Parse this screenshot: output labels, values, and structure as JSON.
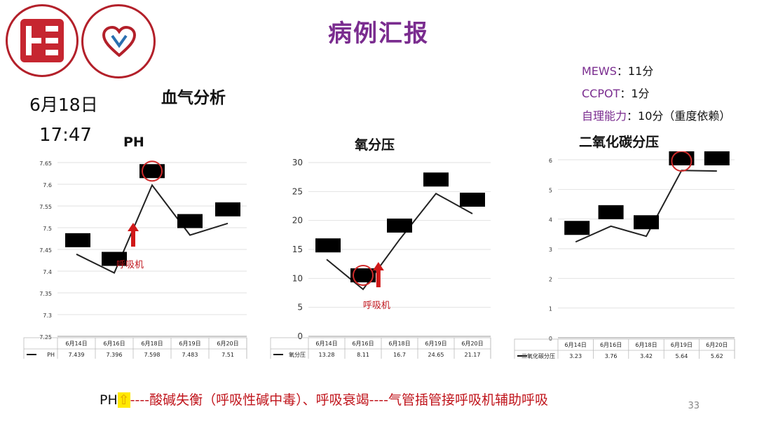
{
  "title": "病例汇报",
  "date": "6月18日",
  "time": "17:47",
  "section_title": "血气分析",
  "scores": [
    {
      "key": "MEWS",
      "value": "：11分"
    },
    {
      "key": "CCPOT",
      "value": "：1分"
    },
    {
      "key": "自理能力",
      "value": "：10分（重度依赖）"
    }
  ],
  "ventilator_label": "呼吸机",
  "footer": {
    "ph": "PH",
    "arrow": "⇧",
    "rest": "----酸碱失衡（呼吸性碱中毒）、呼吸衰竭----气管插管接呼吸机辅助呼吸"
  },
  "page_number": "33",
  "colors": {
    "title": "#7a2c8f",
    "alert": "#c0151c",
    "line": "#222222"
  },
  "chart_data": [
    {
      "type": "line",
      "title": "PH",
      "series": [
        {
          "name": "PH",
          "values": [
            7.439,
            7.396,
            7.598,
            7.483,
            7.51
          ]
        }
      ],
      "categories": [
        "6月14日",
        "6月16日",
        "6月18日",
        "6月19日",
        "6月20日"
      ],
      "value_labels": [
        "7.439",
        "7.396",
        "7.598",
        "7.483",
        "7.51"
      ],
      "ylim": [
        7.25,
        7.65
      ],
      "yticks": [
        "7.25",
        "7.3",
        "7.35",
        "7.4",
        "7.45",
        "7.5",
        "7.55",
        "7.6",
        "7.65"
      ],
      "annotation": {
        "circle_index": 2,
        "arrow_index": 1
      }
    },
    {
      "type": "line",
      "title": "氧分压",
      "series": [
        {
          "name": "氧分压",
          "values": [
            13.28,
            8.11,
            16.7,
            24.65,
            21.17
          ]
        }
      ],
      "categories": [
        "6月14日",
        "6月16日",
        "6月18日",
        "6月19日",
        "6月20日"
      ],
      "value_labels": [
        "13.28",
        "8.11",
        "16.7",
        "24.65",
        "21.17"
      ],
      "ylim": [
        0,
        30
      ],
      "yticks": [
        "0",
        "5",
        "10",
        "15",
        "20",
        "25",
        "30"
      ],
      "annotation": {
        "circle_index": 1,
        "arrow_index": 1
      }
    },
    {
      "type": "line",
      "title": "二氧化碳分压",
      "series": [
        {
          "name": "二氧化碳分压",
          "values": [
            3.23,
            3.76,
            3.42,
            5.64,
            5.62
          ]
        }
      ],
      "categories": [
        "6月14日",
        "6月16日",
        "6月18日",
        "6月19日",
        "6月20日"
      ],
      "value_labels": [
        "3.23",
        "3.76",
        "3.42",
        "5.64",
        "5.62"
      ],
      "ylim": [
        0,
        6
      ],
      "yticks": [
        "0",
        "1",
        "2",
        "3",
        "4",
        "5",
        "6"
      ],
      "annotation": {
        "circle_index": 3,
        "arrow_index": -1
      }
    }
  ]
}
